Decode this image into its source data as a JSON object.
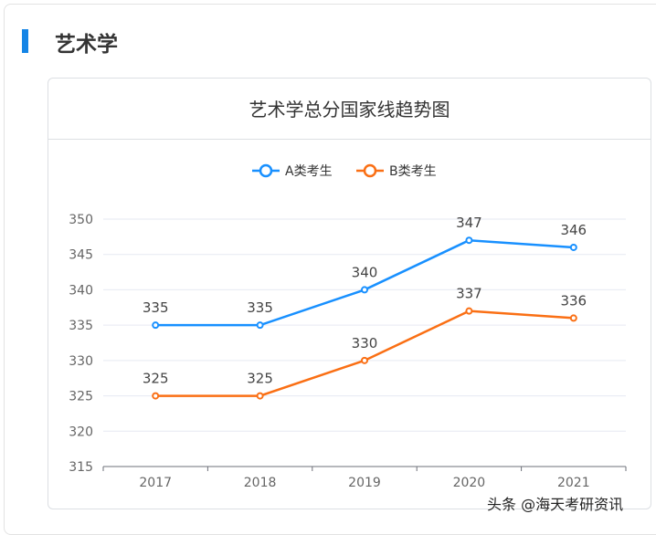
{
  "section": {
    "heading": "艺术学",
    "accent": "#1585e6"
  },
  "watermark": "头条 @海天考研资讯",
  "chart_data": {
    "type": "line",
    "title": "艺术学总分国家线趋势图",
    "categories": [
      "2017",
      "2018",
      "2019",
      "2020",
      "2021"
    ],
    "series": [
      {
        "name": "A类考生",
        "values": [
          335,
          335,
          340,
          347,
          346
        ],
        "color": "#1890ff"
      },
      {
        "name": "B类考生",
        "values": [
          325,
          325,
          330,
          337,
          336
        ],
        "color": "#fa6f14"
      }
    ],
    "ylim": [
      315,
      350
    ],
    "yticks": [
      315,
      320,
      325,
      330,
      335,
      340,
      345,
      350
    ],
    "grid": true,
    "legend": "top-center",
    "data_labels": true
  }
}
